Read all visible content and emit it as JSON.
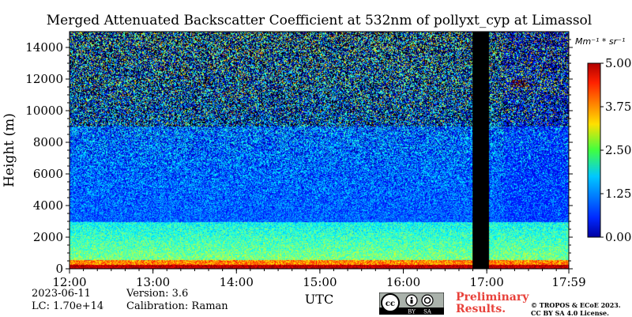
{
  "chart_data": {
    "type": "heatmap",
    "title": "Merged Attenuated Backscatter Coefficient at 532nm of pollyxt_cyp at Limassol",
    "xlabel": "UTC",
    "ylabel": "Height (m)",
    "x_ticks": [
      "12:00",
      "13:00",
      "14:00",
      "15:00",
      "16:00",
      "17:00",
      "17:59"
    ],
    "y_ticks": [
      0,
      2000,
      4000,
      6000,
      8000,
      10000,
      12000,
      14000
    ],
    "ylim": [
      0,
      15000
    ],
    "xlim_hours": [
      12.0,
      17.983
    ],
    "colorbar": {
      "unit_label": "Mm⁻¹ * sr⁻¹",
      "ticks": [
        "0.00",
        "1.25",
        "2.50",
        "3.75",
        "5.00"
      ],
      "range": [
        0.0,
        5.0
      ],
      "colormap": "jet"
    },
    "no_data_interval_hours": [
      16.83,
      17.02
    ],
    "features": [
      {
        "label": "surface layer",
        "height_range_m": [
          0,
          500
        ],
        "intensity": 4.8
      },
      {
        "label": "aerosol layer",
        "height_range_m": [
          500,
          3000
        ],
        "intensity": 2.2
      },
      {
        "label": "cirrus",
        "height_range_m": [
          11000,
          12500
        ],
        "time_range_hours": [
          17.2,
          17.98
        ],
        "intensity": 3.0
      }
    ]
  },
  "info": {
    "date": "2023-06-11",
    "lc": "LC: 1.70e+14",
    "version": "Version: 3.6",
    "calibration": "Calibration: Raman"
  },
  "preliminary": {
    "line1": "Preliminary",
    "line2": "Results."
  },
  "copyright": {
    "line1": "© TROPOS & ECoE 2023.",
    "line2": "CC BY SA 4.0 License."
  },
  "license_badge": {
    "cc": "cc",
    "by": "BY",
    "sa": "SA"
  },
  "colors": {
    "no_data": "#000000",
    "accent_red": "#e8413a"
  }
}
